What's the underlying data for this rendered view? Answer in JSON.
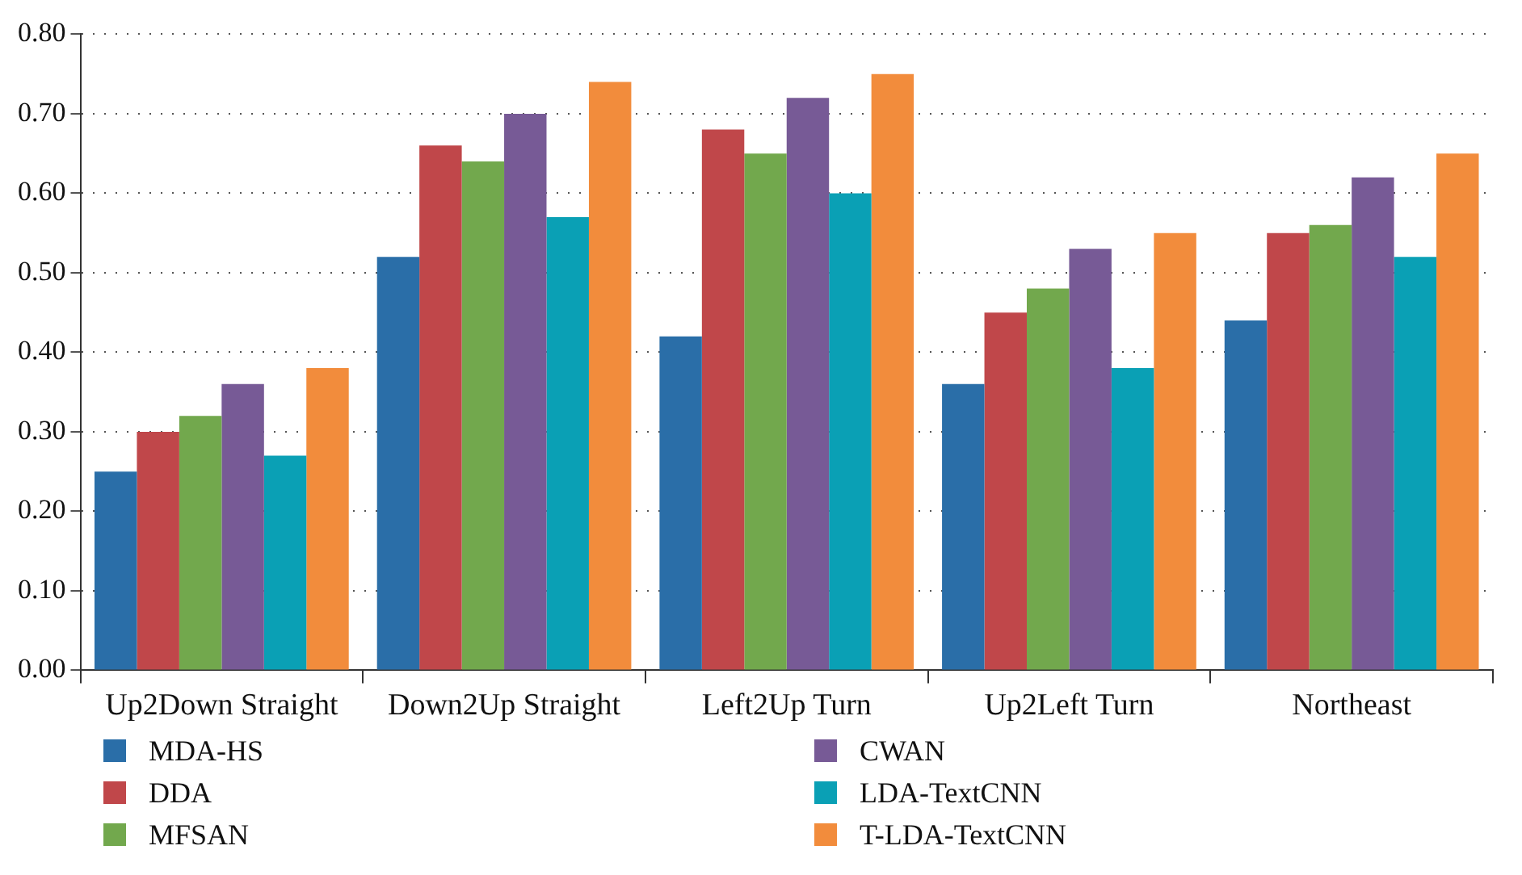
{
  "chart_data": {
    "type": "bar",
    "categories": [
      "Up2Down Straight",
      "Down2Up Straight",
      "Left2Up Turn",
      "Up2Left Turn",
      "Northeast"
    ],
    "series": [
      {
        "name": "MDA-HS",
        "color": "#2a6ea8",
        "values": [
          0.25,
          0.52,
          0.42,
          0.36,
          0.44
        ]
      },
      {
        "name": "DDA",
        "color": "#c0474a",
        "values": [
          0.3,
          0.66,
          0.68,
          0.45,
          0.55
        ]
      },
      {
        "name": "MFSAN",
        "color": "#72a84d",
        "values": [
          0.32,
          0.64,
          0.65,
          0.48,
          0.56
        ]
      },
      {
        "name": "CWAN",
        "color": "#775a96",
        "values": [
          0.36,
          0.7,
          0.72,
          0.53,
          0.62
        ]
      },
      {
        "name": "LDA-TextCNN",
        "color": "#0aa0b5",
        "values": [
          0.27,
          0.57,
          0.6,
          0.38,
          0.52
        ]
      },
      {
        "name": "T-LDA-TextCNN",
        "color": "#f28c3c",
        "values": [
          0.38,
          0.74,
          0.75,
          0.55,
          0.65
        ]
      }
    ],
    "ylim": [
      0,
      0.8
    ],
    "yticks": [
      {
        "value": 0,
        "label": "0.00"
      },
      {
        "value": 0.1,
        "label": "0.10"
      },
      {
        "value": 0.2,
        "label": "0.20"
      },
      {
        "value": 0.3,
        "label": "0.30"
      },
      {
        "value": 0.4,
        "label": "0.40"
      },
      {
        "value": 0.5,
        "label": "0.50"
      },
      {
        "value": 0.6,
        "label": "0.60"
      },
      {
        "value": 0.7,
        "label": "0.70"
      },
      {
        "value": 0.8,
        "label": "0.80"
      }
    ],
    "grid": "y",
    "legend": "bottom"
  }
}
